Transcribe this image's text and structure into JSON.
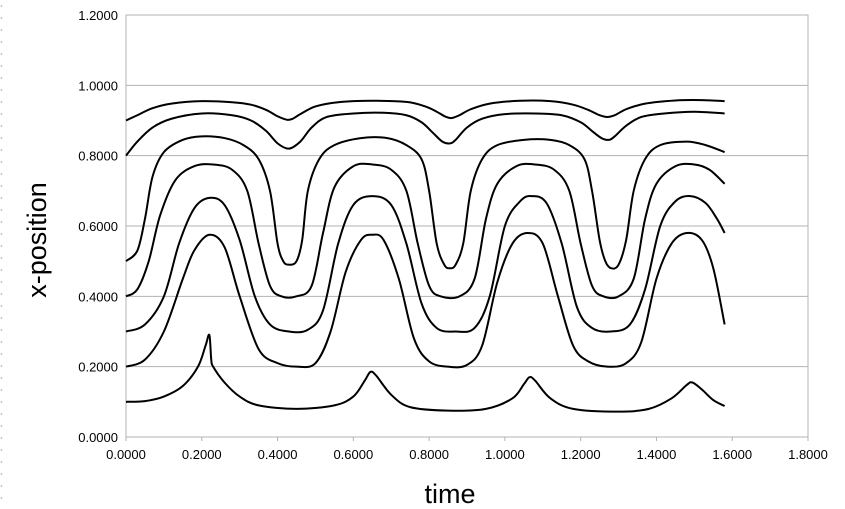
{
  "chart_data": {
    "type": "line",
    "title": "",
    "xlabel": "time",
    "ylabel": "x-position",
    "xlim": [
      0,
      1.8
    ],
    "ylim": [
      0,
      1.2
    ],
    "x_ticks": [
      "0.0000",
      "0.2000",
      "0.4000",
      "0.6000",
      "0.8000",
      "1.0000",
      "1.2000",
      "1.4000",
      "1.6000",
      "1.8000"
    ],
    "y_ticks": [
      "0.0000",
      "0.2000",
      "0.4000",
      "0.6000",
      "0.8000",
      "1.0000",
      "1.2000"
    ],
    "grid": "horizontal major gridlines",
    "legend": "none",
    "line_color": "#000000",
    "grid_color": "#b3b3b3",
    "series": [
      {
        "points": [
          [
            0,
            0.1
          ],
          [
            0.05,
            0.102
          ],
          [
            0.1,
            0.115
          ],
          [
            0.15,
            0.145
          ],
          [
            0.19,
            0.2
          ],
          [
            0.21,
            0.26
          ],
          [
            0.22,
            0.29
          ],
          [
            0.225,
            0.22
          ],
          [
            0.23,
            0.2
          ],
          [
            0.26,
            0.155
          ],
          [
            0.3,
            0.115
          ],
          [
            0.35,
            0.09
          ],
          [
            0.45,
            0.08
          ],
          [
            0.55,
            0.09
          ],
          [
            0.6,
            0.115
          ],
          [
            0.63,
            0.16
          ],
          [
            0.645,
            0.185
          ],
          [
            0.66,
            0.175
          ],
          [
            0.7,
            0.12
          ],
          [
            0.75,
            0.085
          ],
          [
            0.85,
            0.075
          ],
          [
            0.95,
            0.08
          ],
          [
            1.02,
            0.11
          ],
          [
            1.05,
            0.15
          ],
          [
            1.065,
            0.17
          ],
          [
            1.08,
            0.16
          ],
          [
            1.12,
            0.11
          ],
          [
            1.18,
            0.08
          ],
          [
            1.3,
            0.072
          ],
          [
            1.38,
            0.08
          ],
          [
            1.44,
            0.11
          ],
          [
            1.48,
            0.148
          ],
          [
            1.495,
            0.155
          ],
          [
            1.52,
            0.135
          ],
          [
            1.55,
            0.105
          ],
          [
            1.58,
            0.088
          ]
        ]
      },
      {
        "points": [
          [
            0,
            0.2
          ],
          [
            0.05,
            0.22
          ],
          [
            0.1,
            0.3
          ],
          [
            0.15,
            0.45
          ],
          [
            0.18,
            0.53
          ],
          [
            0.22,
            0.575
          ],
          [
            0.26,
            0.54
          ],
          [
            0.3,
            0.4
          ],
          [
            0.35,
            0.25
          ],
          [
            0.4,
            0.21
          ],
          [
            0.45,
            0.2
          ],
          [
            0.5,
            0.21
          ],
          [
            0.54,
            0.3
          ],
          [
            0.58,
            0.47
          ],
          [
            0.62,
            0.56
          ],
          [
            0.65,
            0.575
          ],
          [
            0.68,
            0.56
          ],
          [
            0.72,
            0.45
          ],
          [
            0.76,
            0.28
          ],
          [
            0.8,
            0.215
          ],
          [
            0.85,
            0.2
          ],
          [
            0.9,
            0.205
          ],
          [
            0.94,
            0.26
          ],
          [
            0.98,
            0.44
          ],
          [
            1.02,
            0.55
          ],
          [
            1.06,
            0.58
          ],
          [
            1.1,
            0.55
          ],
          [
            1.14,
            0.4
          ],
          [
            1.18,
            0.26
          ],
          [
            1.22,
            0.215
          ],
          [
            1.27,
            0.2
          ],
          [
            1.32,
            0.21
          ],
          [
            1.36,
            0.27
          ],
          [
            1.4,
            0.45
          ],
          [
            1.44,
            0.55
          ],
          [
            1.48,
            0.58
          ],
          [
            1.52,
            0.56
          ],
          [
            1.55,
            0.48
          ],
          [
            1.58,
            0.32
          ]
        ]
      },
      {
        "points": [
          [
            0,
            0.3
          ],
          [
            0.05,
            0.32
          ],
          [
            0.1,
            0.4
          ],
          [
            0.14,
            0.55
          ],
          [
            0.18,
            0.65
          ],
          [
            0.22,
            0.68
          ],
          [
            0.26,
            0.66
          ],
          [
            0.3,
            0.56
          ],
          [
            0.34,
            0.4
          ],
          [
            0.38,
            0.32
          ],
          [
            0.43,
            0.3
          ],
          [
            0.48,
            0.305
          ],
          [
            0.52,
            0.36
          ],
          [
            0.56,
            0.55
          ],
          [
            0.6,
            0.66
          ],
          [
            0.65,
            0.685
          ],
          [
            0.7,
            0.66
          ],
          [
            0.74,
            0.55
          ],
          [
            0.78,
            0.38
          ],
          [
            0.82,
            0.31
          ],
          [
            0.87,
            0.3
          ],
          [
            0.92,
            0.31
          ],
          [
            0.96,
            0.4
          ],
          [
            1.0,
            0.6
          ],
          [
            1.04,
            0.67
          ],
          [
            1.07,
            0.685
          ],
          [
            1.11,
            0.665
          ],
          [
            1.15,
            0.55
          ],
          [
            1.19,
            0.37
          ],
          [
            1.23,
            0.31
          ],
          [
            1.28,
            0.3
          ],
          [
            1.33,
            0.32
          ],
          [
            1.37,
            0.42
          ],
          [
            1.41,
            0.6
          ],
          [
            1.45,
            0.67
          ],
          [
            1.49,
            0.685
          ],
          [
            1.53,
            0.665
          ],
          [
            1.56,
            0.62
          ],
          [
            1.58,
            0.58
          ]
        ]
      },
      {
        "points": [
          [
            0,
            0.4
          ],
          [
            0.03,
            0.42
          ],
          [
            0.06,
            0.5
          ],
          [
            0.09,
            0.63
          ],
          [
            0.13,
            0.73
          ],
          [
            0.18,
            0.77
          ],
          [
            0.23,
            0.775
          ],
          [
            0.28,
            0.76
          ],
          [
            0.32,
            0.7
          ],
          [
            0.35,
            0.55
          ],
          [
            0.38,
            0.43
          ],
          [
            0.41,
            0.4
          ],
          [
            0.45,
            0.4
          ],
          [
            0.49,
            0.43
          ],
          [
            0.52,
            0.58
          ],
          [
            0.55,
            0.71
          ],
          [
            0.6,
            0.77
          ],
          [
            0.65,
            0.775
          ],
          [
            0.7,
            0.76
          ],
          [
            0.74,
            0.7
          ],
          [
            0.77,
            0.55
          ],
          [
            0.8,
            0.43
          ],
          [
            0.83,
            0.4
          ],
          [
            0.88,
            0.4
          ],
          [
            0.92,
            0.45
          ],
          [
            0.95,
            0.62
          ],
          [
            0.98,
            0.72
          ],
          [
            1.03,
            0.77
          ],
          [
            1.08,
            0.775
          ],
          [
            1.13,
            0.76
          ],
          [
            1.17,
            0.7
          ],
          [
            1.2,
            0.55
          ],
          [
            1.23,
            0.43
          ],
          [
            1.26,
            0.4
          ],
          [
            1.3,
            0.4
          ],
          [
            1.34,
            0.45
          ],
          [
            1.37,
            0.62
          ],
          [
            1.4,
            0.72
          ],
          [
            1.45,
            0.77
          ],
          [
            1.5,
            0.775
          ],
          [
            1.54,
            0.76
          ],
          [
            1.58,
            0.72
          ]
        ]
      },
      {
        "points": [
          [
            0,
            0.5
          ],
          [
            0.03,
            0.53
          ],
          [
            0.05,
            0.62
          ],
          [
            0.07,
            0.74
          ],
          [
            0.1,
            0.81
          ],
          [
            0.15,
            0.845
          ],
          [
            0.2,
            0.855
          ],
          [
            0.26,
            0.85
          ],
          [
            0.31,
            0.83
          ],
          [
            0.35,
            0.79
          ],
          [
            0.38,
            0.7
          ],
          [
            0.4,
            0.55
          ],
          [
            0.415,
            0.5
          ],
          [
            0.43,
            0.49
          ],
          [
            0.45,
            0.5
          ],
          [
            0.465,
            0.56
          ],
          [
            0.48,
            0.7
          ],
          [
            0.51,
            0.79
          ],
          [
            0.55,
            0.83
          ],
          [
            0.62,
            0.85
          ],
          [
            0.69,
            0.85
          ],
          [
            0.74,
            0.83
          ],
          [
            0.78,
            0.79
          ],
          [
            0.8,
            0.7
          ],
          [
            0.82,
            0.55
          ],
          [
            0.84,
            0.49
          ],
          [
            0.855,
            0.48
          ],
          [
            0.87,
            0.49
          ],
          [
            0.89,
            0.55
          ],
          [
            0.91,
            0.7
          ],
          [
            0.94,
            0.79
          ],
          [
            0.98,
            0.83
          ],
          [
            1.05,
            0.845
          ],
          [
            1.12,
            0.845
          ],
          [
            1.17,
            0.83
          ],
          [
            1.21,
            0.79
          ],
          [
            1.23,
            0.7
          ],
          [
            1.25,
            0.56
          ],
          [
            1.265,
            0.5
          ],
          [
            1.28,
            0.48
          ],
          [
            1.3,
            0.49
          ],
          [
            1.32,
            0.56
          ],
          [
            1.34,
            0.7
          ],
          [
            1.37,
            0.79
          ],
          [
            1.41,
            0.83
          ],
          [
            1.48,
            0.84
          ],
          [
            1.53,
            0.83
          ],
          [
            1.58,
            0.81
          ]
        ]
      },
      {
        "points": [
          [
            0,
            0.8
          ],
          [
            0.03,
            0.84
          ],
          [
            0.07,
            0.88
          ],
          [
            0.12,
            0.905
          ],
          [
            0.2,
            0.92
          ],
          [
            0.28,
            0.915
          ],
          [
            0.33,
            0.9
          ],
          [
            0.37,
            0.87
          ],
          [
            0.4,
            0.835
          ],
          [
            0.43,
            0.82
          ],
          [
            0.46,
            0.84
          ],
          [
            0.49,
            0.88
          ],
          [
            0.53,
            0.91
          ],
          [
            0.6,
            0.92
          ],
          [
            0.68,
            0.922
          ],
          [
            0.74,
            0.915
          ],
          [
            0.78,
            0.895
          ],
          [
            0.81,
            0.865
          ],
          [
            0.835,
            0.84
          ],
          [
            0.855,
            0.835
          ],
          [
            0.87,
            0.845
          ],
          [
            0.9,
            0.88
          ],
          [
            0.94,
            0.905
          ],
          [
            1.0,
            0.918
          ],
          [
            1.08,
            0.92
          ],
          [
            1.15,
            0.915
          ],
          [
            1.2,
            0.895
          ],
          [
            1.23,
            0.87
          ],
          [
            1.255,
            0.85
          ],
          [
            1.275,
            0.845
          ],
          [
            1.29,
            0.855
          ],
          [
            1.32,
            0.885
          ],
          [
            1.36,
            0.91
          ],
          [
            1.42,
            0.92
          ],
          [
            1.5,
            0.925
          ],
          [
            1.58,
            0.92
          ]
        ]
      },
      {
        "points": [
          [
            0,
            0.9
          ],
          [
            0.03,
            0.915
          ],
          [
            0.07,
            0.935
          ],
          [
            0.12,
            0.948
          ],
          [
            0.2,
            0.955
          ],
          [
            0.28,
            0.952
          ],
          [
            0.33,
            0.945
          ],
          [
            0.37,
            0.93
          ],
          [
            0.4,
            0.912
          ],
          [
            0.425,
            0.902
          ],
          [
            0.44,
            0.905
          ],
          [
            0.46,
            0.918
          ],
          [
            0.5,
            0.94
          ],
          [
            0.56,
            0.952
          ],
          [
            0.65,
            0.956
          ],
          [
            0.74,
            0.953
          ],
          [
            0.79,
            0.94
          ],
          [
            0.82,
            0.925
          ],
          [
            0.845,
            0.91
          ],
          [
            0.86,
            0.907
          ],
          [
            0.88,
            0.915
          ],
          [
            0.91,
            0.932
          ],
          [
            0.96,
            0.948
          ],
          [
            1.04,
            0.956
          ],
          [
            1.12,
            0.955
          ],
          [
            1.18,
            0.945
          ],
          [
            1.22,
            0.93
          ],
          [
            1.25,
            0.915
          ],
          [
            1.27,
            0.91
          ],
          [
            1.29,
            0.915
          ],
          [
            1.32,
            0.932
          ],
          [
            1.37,
            0.948
          ],
          [
            1.45,
            0.957
          ],
          [
            1.52,
            0.958
          ],
          [
            1.58,
            0.955
          ]
        ]
      }
    ]
  }
}
